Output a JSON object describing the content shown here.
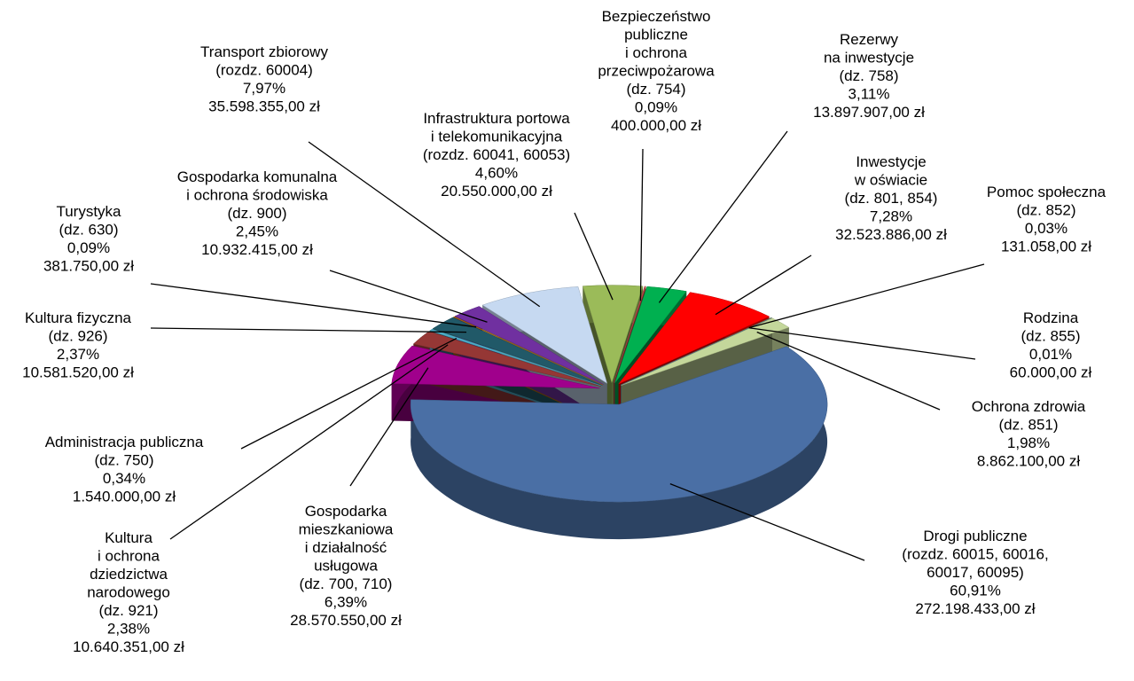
{
  "chart_data": {
    "type": "pie",
    "categories": [
      [
        "Infrastruktura portowa",
        "i telekomunikacyjna",
        "(rozdz. 60041, 60053)"
      ],
      [
        "Bezpieczeństwo",
        "publiczne",
        "i ochrona",
        "przeciwpożarowa",
        "(dz. 754)"
      ],
      [
        "Rezerwy",
        "na inwestycje",
        "(dz. 758)"
      ],
      [
        "Inwestycje",
        "w oświacie",
        "(dz. 801, 854)"
      ],
      [
        "Pomoc społeczna",
        "(dz. 852)"
      ],
      [
        "Rodzina",
        "(dz. 855)"
      ],
      [
        "Ochrona zdrowia",
        "(dz. 851)"
      ],
      [
        "Drogi publiczne",
        "(rozdz. 60015, 60016,",
        "60017, 60095)"
      ],
      [
        "Gospodarka",
        "mieszkaniowa",
        "i działalność",
        "usługowa",
        "(dz. 700, 710)"
      ],
      [
        "Kultura",
        "i ochrona",
        "dziedzictwa",
        "narodowego",
        "(dz. 921)"
      ],
      [
        "Administracja publiczna",
        "(dz. 750)"
      ],
      [
        "Kultura fizyczna",
        "(dz. 926)"
      ],
      [
        "Turystyka",
        "(dz. 630)"
      ],
      [
        "Gospodarka komunalna",
        "i ochrona środowiska",
        "(dz. 900)"
      ],
      [
        "Transport zbiorowy",
        "(rozdz. 60004)"
      ]
    ],
    "values": [
      4.6,
      0.09,
      3.11,
      7.28,
      0.03,
      0.01,
      1.98,
      60.91,
      6.39,
      2.38,
      0.34,
      2.37,
      0.09,
      2.45,
      7.97
    ],
    "value_labels": [
      "4,60%",
      "0,09%",
      "3,11%",
      "7,28%",
      "0,03%",
      "0,01%",
      "1,98%",
      "60,91%",
      "6,39%",
      "2,38%",
      "0,34%",
      "2,37%",
      "0,09%",
      "2,45%",
      "7,97%"
    ],
    "amounts": [
      20550000,
      400000,
      13897907,
      32523886,
      131058,
      60000,
      8862100,
      272198433,
      28570550,
      10640351,
      1540000,
      10581520,
      381750,
      10932415,
      35598355
    ],
    "amount_labels": [
      "20.550.000,00 zł",
      "400.000,00 zł",
      "13.897.907,00 zł",
      "32.523.886,00 zł",
      "131.058,00 zł",
      "60.000,00 zł",
      "8.862.100,00 zł",
      "272.198.433,00 zł",
      "28.570.550,00 zł",
      "10.640.351,00 zł",
      "1.540.000,00 zł",
      "10.581.520,00 zł",
      "381.750,00 zł",
      "10.932.415,00 zł",
      "35.598.355,00 zł"
    ],
    "colors": [
      "#9bbb59",
      "#c0504d",
      "#00b050",
      "#ff0000",
      "#c0b000",
      "#4f81bd",
      "#c4d79b",
      "#4a6fa5",
      "#a0008c",
      "#953735",
      "#4bacc6",
      "#215968",
      "#c07000",
      "#7030a0",
      "#c6d9f1"
    ]
  }
}
